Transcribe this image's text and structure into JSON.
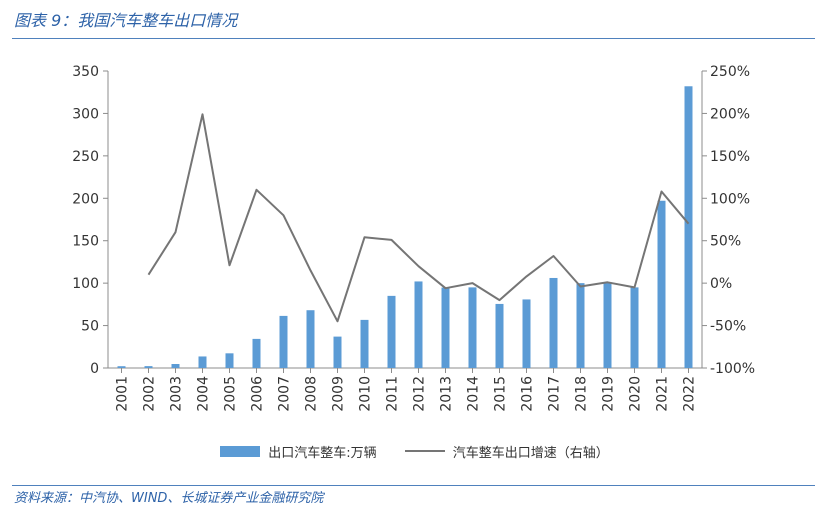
{
  "header": {
    "title": "图表 9：我国汽车整车出口情况"
  },
  "footer": {
    "source": "资料来源：中汽协、WIND、长城证券产业金融研究院"
  },
  "colors": {
    "bar": "#5b9bd5",
    "line": "#757575",
    "accent": "#2d62a8",
    "rule": "#4f81bd"
  },
  "chart_data": {
    "type": "bar",
    "categories": [
      "2001",
      "2002",
      "2003",
      "2004",
      "2005",
      "2006",
      "2007",
      "2008",
      "2009",
      "2010",
      "2011",
      "2012",
      "2013",
      "2014",
      "2015",
      "2016",
      "2017",
      "2018",
      "2019",
      "2020",
      "2021",
      "2022"
    ],
    "series": [
      {
        "name": "出口汽车整车:万辆",
        "type": "bar",
        "axis": "left",
        "values": [
          2.1,
          2.2,
          4.7,
          13.6,
          17.3,
          34.3,
          61.4,
          68.1,
          37.0,
          56.7,
          85.0,
          102.0,
          94.8,
          95.0,
          75.5,
          80.8,
          106.1,
          100.0,
          101.3,
          95.0,
          197.1,
          332.0
        ]
      },
      {
        "name": "汽车整车出口增速（右轴）",
        "type": "line",
        "axis": "right",
        "values": [
          null,
          10,
          60,
          199,
          21,
          110,
          80,
          15,
          -45,
          54,
          51,
          20,
          -6,
          0,
          -20,
          8,
          32,
          -4,
          1,
          -5,
          108,
          70
        ]
      }
    ],
    "yleft": {
      "ticks": [
        "0",
        "50",
        "100",
        "150",
        "200",
        "250",
        "300",
        "350"
      ],
      "ylim": [
        0,
        350
      ]
    },
    "yright": {
      "ticks": [
        "-100%",
        "-50%",
        "0%",
        "50%",
        "100%",
        "150%",
        "200%",
        "250%"
      ],
      "ylim": [
        -100,
        250
      ]
    },
    "grid": false,
    "legend": "bottom"
  }
}
